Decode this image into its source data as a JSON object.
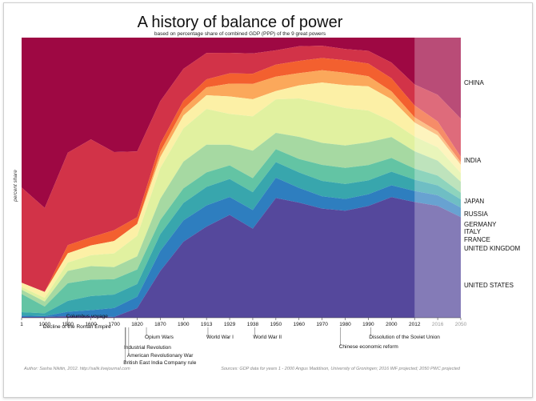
{
  "chart_data": {
    "type": "area",
    "stacked": true,
    "normalized": true,
    "title": "A history of  balance of power",
    "subtitle": "based on percentage share of combined GDP (PPP) of the 9 great powers",
    "ylabel": "percent share",
    "ylim": [
      0,
      100
    ],
    "x": [
      1,
      1000,
      1500,
      1600,
      1700,
      1820,
      1870,
      1900,
      1913,
      1929,
      1938,
      1950,
      1960,
      1970,
      1980,
      1990,
      2000,
      2012,
      2016,
      2050
    ],
    "x_tick_labels": [
      "1",
      "1000",
      "1500",
      "1600",
      "1700",
      "1820",
      "1870",
      "1900",
      "1913",
      "1929",
      "1938",
      "1950",
      "1960",
      "1970",
      "1980",
      "1990",
      "2000",
      "2012",
      "2016",
      "2050"
    ],
    "projected_from": 2012,
    "projected_tick_labels": [
      "2016",
      "2050"
    ],
    "series": [
      {
        "name": "UNITED STATES",
        "color": "#55489c",
        "values": [
          0.3,
          0.3,
          0.6,
          0.6,
          0.3,
          3.5,
          17.5,
          28.5,
          34.5,
          40,
          35,
          50,
          47,
          44.5,
          43,
          44,
          46,
          44,
          42,
          37
        ]
      },
      {
        "name": "UNITED KINGDOM",
        "color": "#2e7ebf",
        "values": [
          0.5,
          0.3,
          1.6,
          2.2,
          3.3,
          4.2,
          7.5,
          8.0,
          8.0,
          7.0,
          7.3,
          8.5,
          6.0,
          5.0,
          4.7,
          4.6,
          4.5,
          4.2,
          4.0,
          3.5
        ]
      },
      {
        "name": "FRANCE",
        "color": "#38a6ad",
        "values": [
          1.2,
          1.0,
          4.0,
          5.2,
          5.0,
          4.6,
          6.3,
          6.5,
          7.0,
          7.0,
          7.0,
          6.5,
          6.3,
          6.3,
          6.0,
          5.5,
          5.2,
          4.3,
          3.7,
          3.0
        ]
      },
      {
        "name": "ITALY",
        "color": "#63c4a4",
        "values": [
          6.5,
          2.4,
          6.5,
          6.0,
          5.7,
          5.3,
          5.3,
          5.5,
          5.5,
          5.3,
          5.5,
          5.4,
          5.5,
          6.5,
          6.5,
          6.0,
          5.2,
          4.2,
          3.7,
          2.5
        ]
      },
      {
        "name": "GERMANY",
        "color": "#a6d9a2",
        "values": [
          1.5,
          1.8,
          4.5,
          5.0,
          4.5,
          4.8,
          8.0,
          10.0,
          10.5,
          8.0,
          10.8,
          6.8,
          9.0,
          9.0,
          9.0,
          9.0,
          8.0,
          6.6,
          5.6,
          4.0
        ]
      },
      {
        "name": "RUSSIA",
        "color": "#e1f1a0",
        "values": [
          1.0,
          1.3,
          3.1,
          4.0,
          5.1,
          7.5,
          11.5,
          12.5,
          13.5,
          12.0,
          13.5,
          14.0,
          15.7,
          16.3,
          15.0,
          12.5,
          6.0,
          5.6,
          5.0,
          3.2
        ]
      },
      {
        "name": "JAPAN",
        "color": "#fcf0a6",
        "values": [
          1.5,
          2.1,
          3.4,
          3.6,
          4.6,
          4.3,
          4.1,
          4.8,
          5.2,
          6.8,
          6.7,
          3.5,
          5.3,
          8.3,
          9.2,
          9.5,
          8.4,
          5.3,
          4.5,
          3.0
        ]
      },
      {
        "name": "INDIA",
        "color": "#d23348",
        "values": [
          34,
          30,
          34,
          36,
          29,
          24,
          16,
          12,
          10,
          8,
          8,
          6,
          6,
          5,
          4.5,
          5,
          6,
          8,
          10,
          14
        ]
      },
      {
        "name": "CHINA",
        "color": "#9e0843",
        "values": [
          53.5,
          60.8,
          42.3,
          37.4,
          42.5,
          41.5,
          23.8,
          11.7,
          5.8,
          5.9,
          6.2,
          5.3,
          3.5,
          3.3,
          4.6,
          5.2,
          9.5,
          17.8,
          21.5,
          29.8
        ]
      },
      {
        "name": "",
        "color": "#f3602f",
        "values": [
          0,
          0,
          3,
          3,
          4,
          2.5,
          3,
          3,
          3,
          4,
          4,
          5,
          5,
          5,
          5,
          5,
          5,
          4.5,
          3.7,
          2.0
        ]
      },
      {
        "name": "",
        "color": "#fba85b",
        "values": [
          0,
          0,
          0,
          0,
          0,
          0,
          2,
          2.5,
          3,
          5,
          6,
          6,
          5,
          5,
          5,
          4,
          3,
          2,
          1.5,
          1.0
        ]
      }
    ],
    "legend_order": [
      "CHINA",
      "INDIA",
      "JAPAN",
      "RUSSIA",
      "GERMANY",
      "ITALY",
      "FRANCE",
      "UNITED KINGDOM",
      "UNITED STATES"
    ],
    "events": [
      {
        "label": "Decline of the Roman Empire",
        "x": 1000
      },
      {
        "label": "Columbus voyage",
        "x": 1500
      },
      {
        "label": "Industrial Revolution",
        "x": 1760
      },
      {
        "label": "American Revolutionary War",
        "x": 1776
      },
      {
        "label": "British East India Company rule",
        "x": 1757
      },
      {
        "label": "Opium Wars",
        "x": 1840
      },
      {
        "label": "World War I",
        "x": 1914
      },
      {
        "label": "World War II",
        "x": 1939
      },
      {
        "label": "Chinese economic reform",
        "x": 1978
      },
      {
        "label": "Dissolution of the Soviet Union",
        "x": 1991
      }
    ],
    "grid": false,
    "legend_position": "right"
  },
  "footer": {
    "author": "Author:  Sasha Nikitin, 2012. http://salik.livejournal.com",
    "sources": "Sources:  GDP data for years 1 - 2000 Angus Maddison, University of Groningen;  2016 IMF projected;  2050 PWC projected"
  }
}
